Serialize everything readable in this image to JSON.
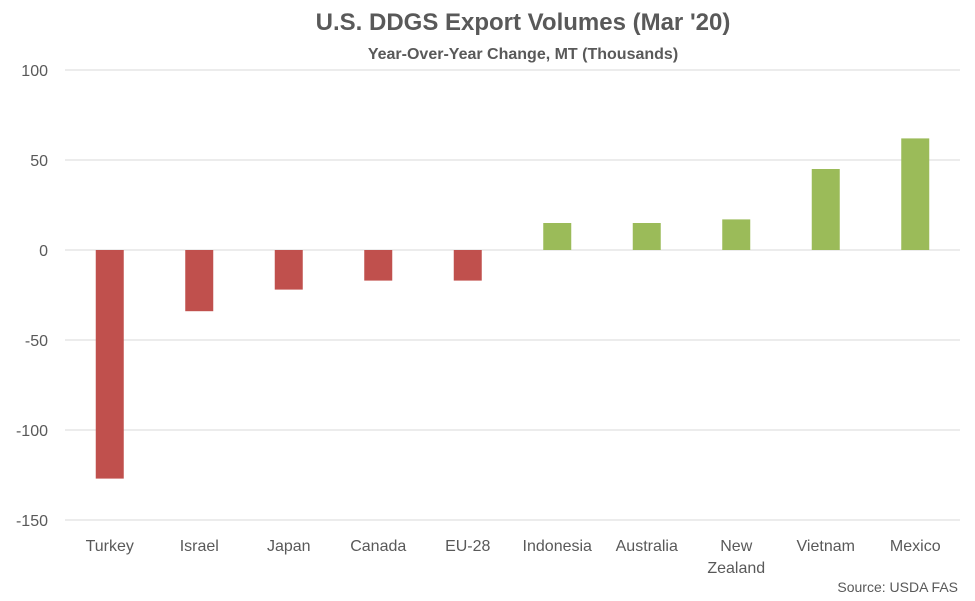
{
  "chart_data": {
    "type": "bar",
    "title": "U.S. DDGS Export Volumes (Mar '20)",
    "subtitle": "Year-Over-Year Change, MT (Thousands)",
    "categories": [
      "Turkey",
      "Israel",
      "Japan",
      "Canada",
      "EU-28",
      "Indonesia",
      "Australia",
      "New Zealand",
      "Vietnam",
      "Mexico"
    ],
    "values": [
      -127,
      -34,
      -22,
      -17,
      -17,
      15,
      15,
      17,
      45,
      62
    ],
    "ylim": [
      -150,
      100
    ],
    "yticks": [
      100,
      50,
      0,
      -50,
      -100,
      -150
    ],
    "grid": true,
    "colors": {
      "negative": "#c0504d",
      "positive": "#9bbb59"
    },
    "source": "Source: USDA FAS"
  }
}
